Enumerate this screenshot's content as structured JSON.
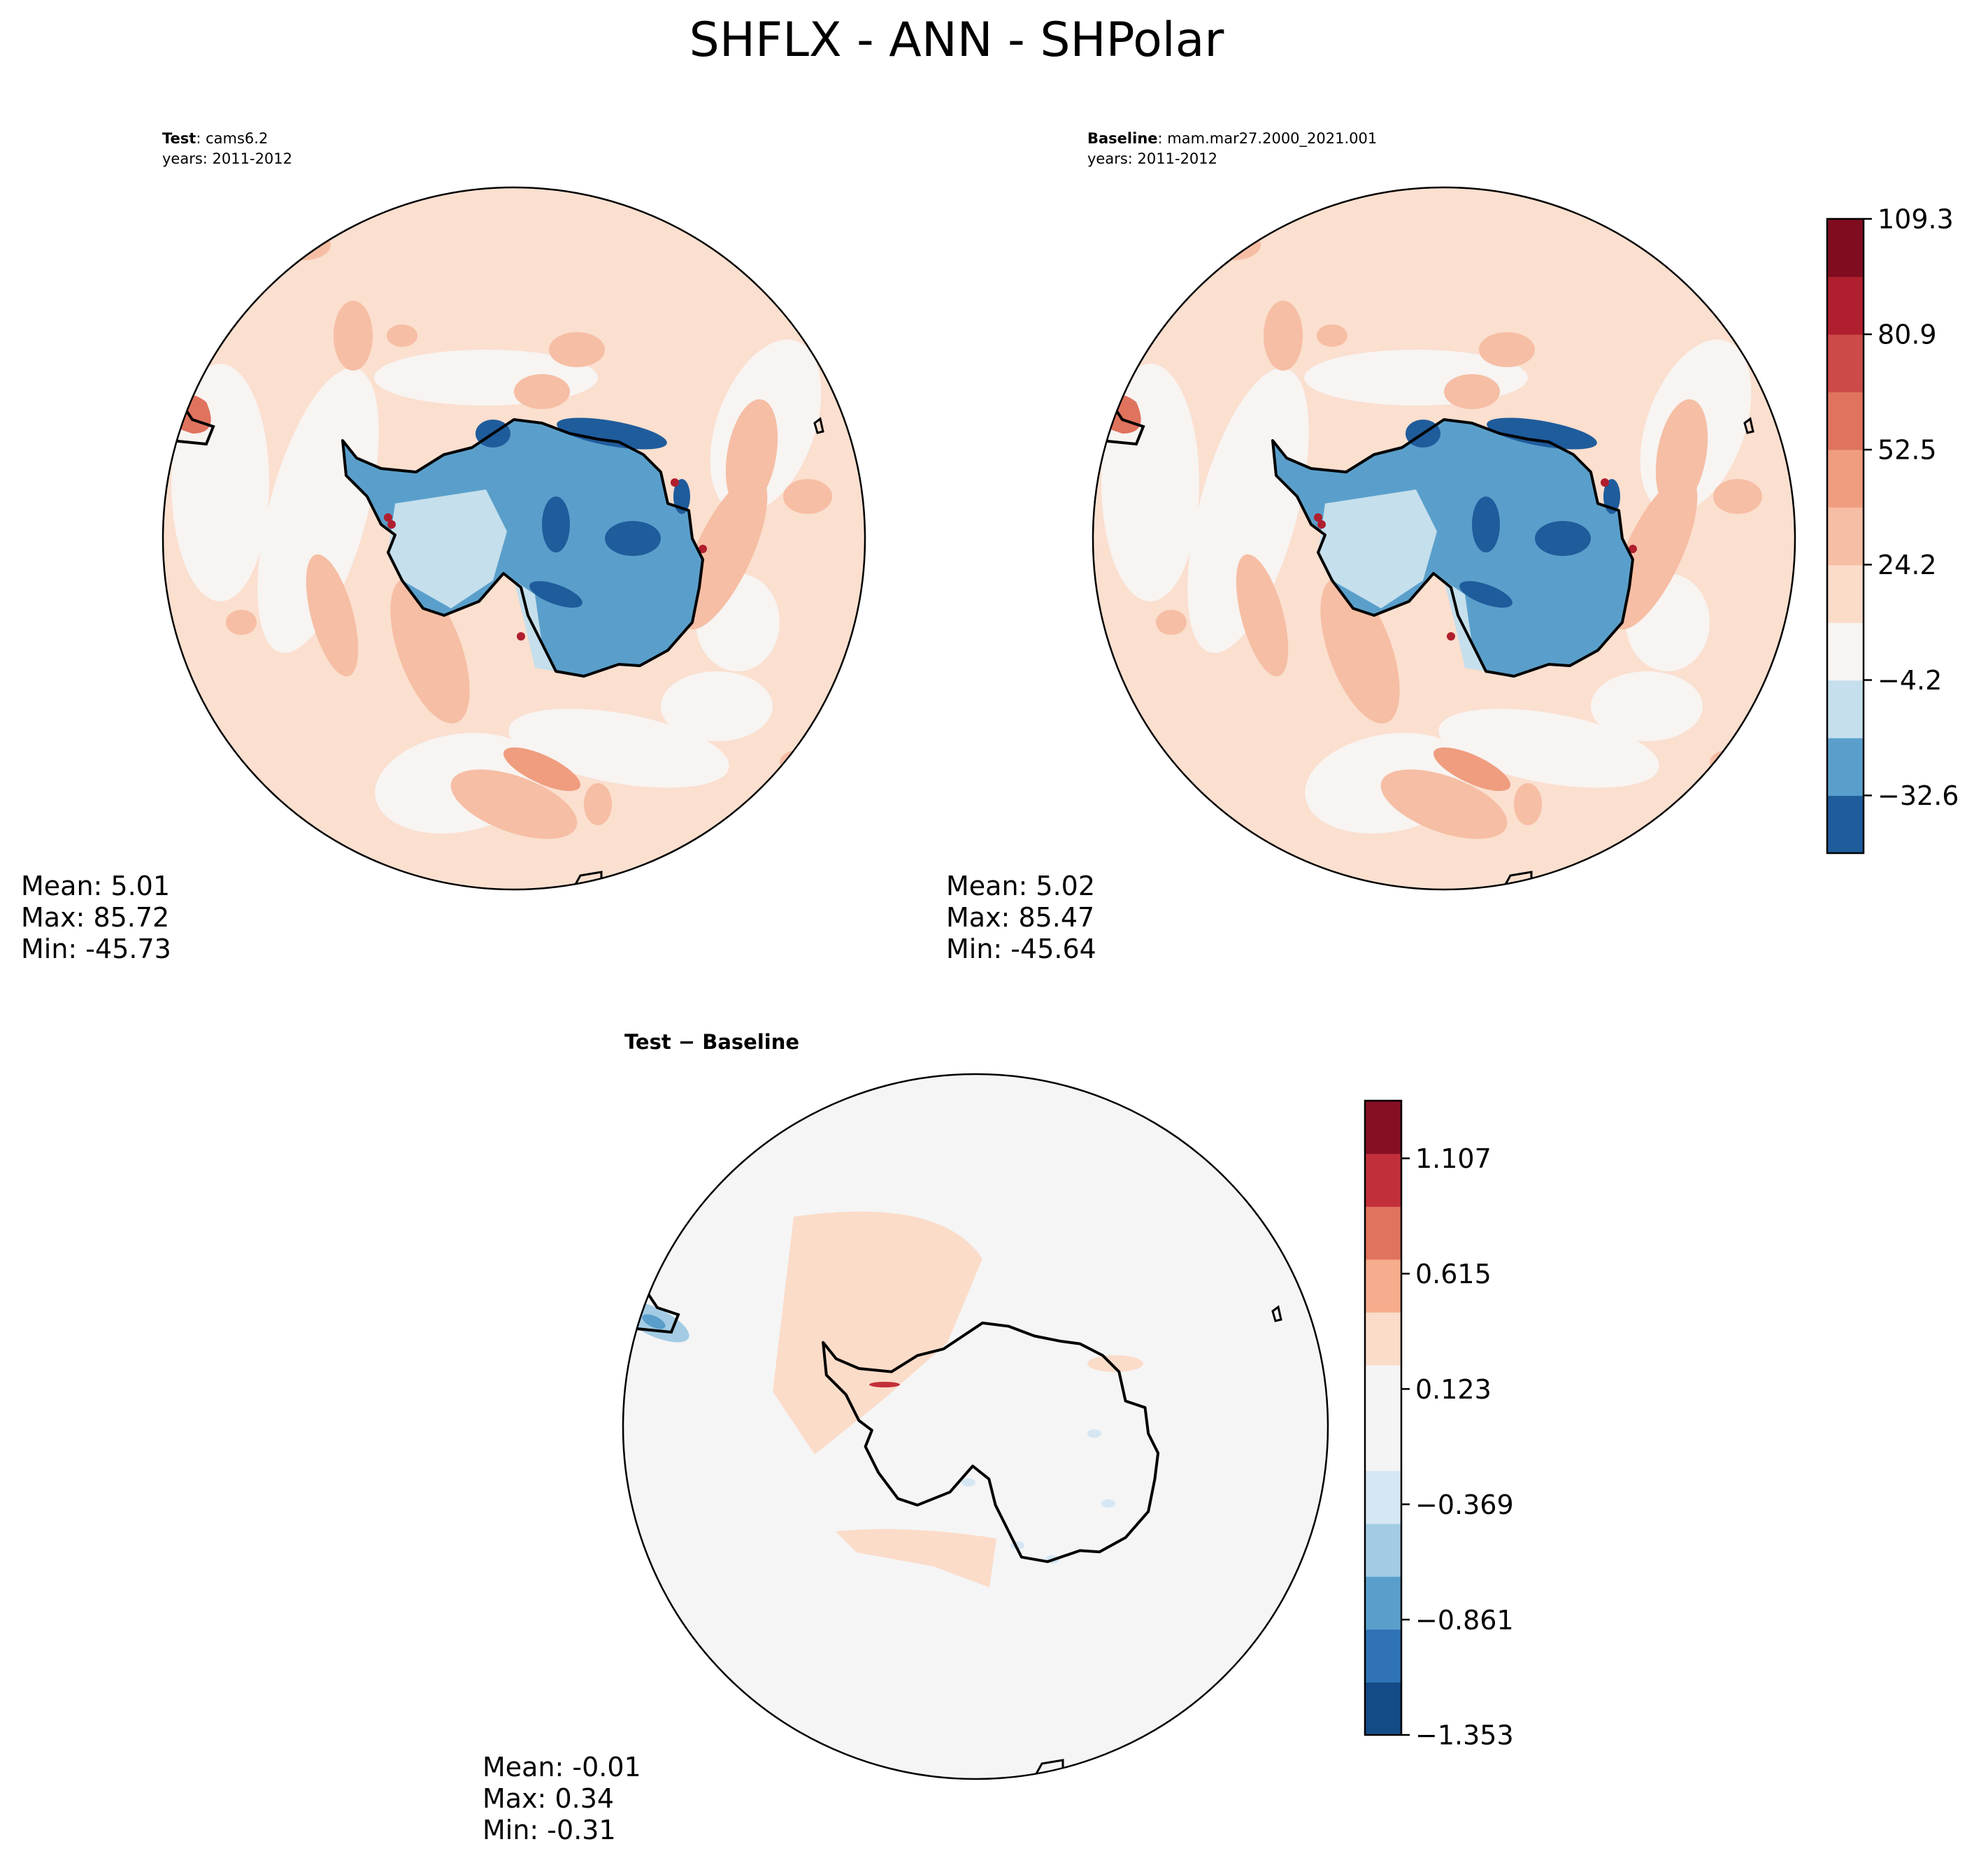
{
  "figure": {
    "title": "SHFLX - ANN - SHPolar"
  },
  "panels": {
    "test": {
      "label": "Test",
      "case": "cams6.2",
      "years": "years: 2011-2012",
      "mean": "Mean:  5.01",
      "max": "Max: 85.72",
      "min": "Min: -45.73"
    },
    "baseline": {
      "label": "Baseline",
      "case": "mam.mar27.2000_2021.001",
      "years": "years: 2011-2012",
      "mean": "Mean:  5.02",
      "max": "Max: 85.47",
      "min": "Min: -45.64"
    },
    "diff": {
      "title": "Test − Baseline",
      "mean": "Mean: -0.01",
      "max": "Max:  0.34",
      "min": "Min: -0.31"
    }
  },
  "chart_data": [
    {
      "type": "heatmap",
      "projection": "south-polar-stereographic",
      "panel": "test",
      "colormap": "RdBu_r",
      "stats": {
        "mean": 5.01,
        "max": 85.72,
        "min": -45.73
      }
    },
    {
      "type": "heatmap",
      "projection": "south-polar-stereographic",
      "panel": "baseline",
      "colormap": "RdBu_r",
      "stats": {
        "mean": 5.02,
        "max": 85.47,
        "min": -45.64
      }
    },
    {
      "type": "heatmap",
      "projection": "south-polar-stereographic",
      "panel": "diff",
      "colormap": "RdBu_r",
      "stats": {
        "mean": -0.01,
        "max": 0.34,
        "min": -0.31
      }
    }
  ],
  "colorbars": {
    "main": {
      "range": [
        -46.8,
        109.3
      ],
      "ticks": [
        109.3,
        80.9,
        52.5,
        24.2,
        -4.2,
        -32.6
      ],
      "tick_labels": [
        "109.3",
        "80.9",
        "52.5",
        "24.2",
        "−4.2",
        "−32.6"
      ],
      "colors": [
        "#1f5c9c",
        "#5a9fcb",
        "#c5dfec",
        "#f7f4f2",
        "#fbdcc9",
        "#f6bea4",
        "#f09d7f",
        "#e0735d",
        "#cc4b48",
        "#b01f2e",
        "#7f0d1f"
      ]
    },
    "diff": {
      "range": [
        -1.353,
        1.353
      ],
      "ticks": [
        1.107,
        0.615,
        0.123,
        -0.369,
        -0.861,
        -1.353
      ],
      "tick_labels": [
        "1.107",
        "0.615",
        "0.123",
        "−0.369",
        "−0.861",
        "−1.353"
      ],
      "colors": [
        "#134b86",
        "#2f73b6",
        "#5a9fcb",
        "#a3cce4",
        "#d6e7f3",
        "#f4f4f4",
        "#f4f4f4",
        "#fbdcc9",
        "#f6ad8d",
        "#e0735d",
        "#c1303a",
        "#870f25"
      ]
    }
  }
}
